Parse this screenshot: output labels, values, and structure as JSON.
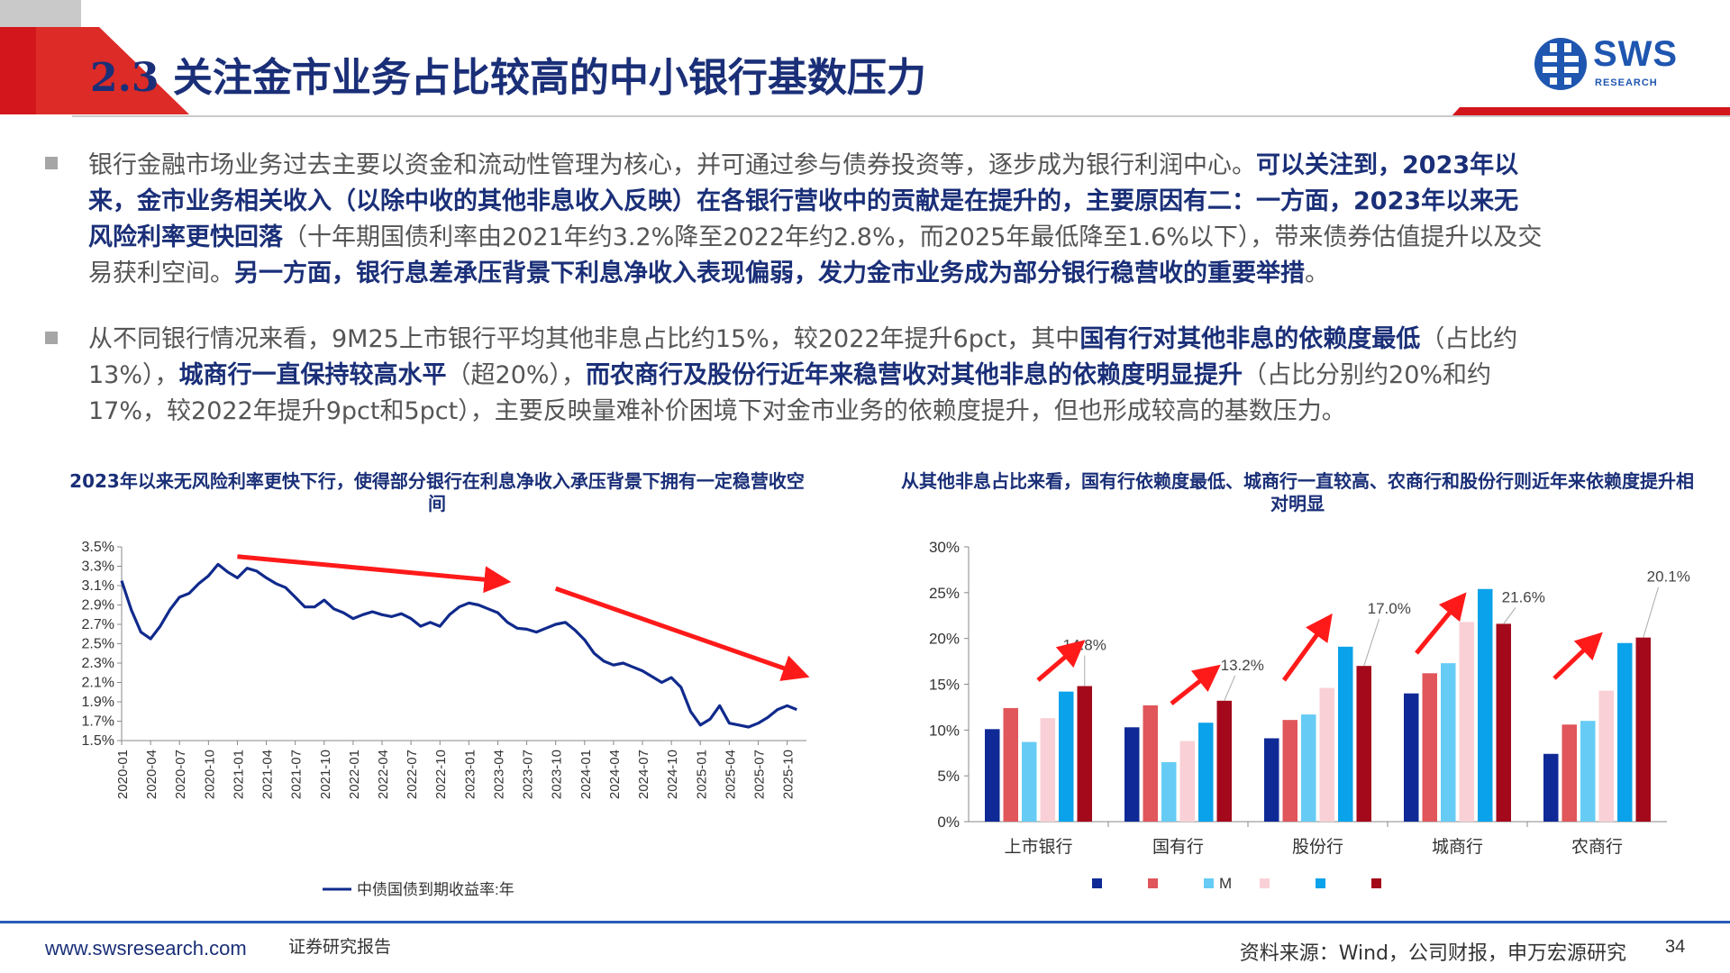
{
  "header": {
    "title": "2.3 关注金市业务占比较高的中小银行基数压力",
    "logo_text": "SWS",
    "logo_sub": "RESEARCH"
  },
  "paragraphs": [
    {
      "lines": [
        [
          {
            "t": "银行金融市场业务过去主要以资金和流动性管理为核心，并可通过参与债券投资等，逐步成为银行利润中心。",
            "b": false
          },
          {
            "t": "可以关注到，2023年以",
            "b": true
          }
        ],
        [
          {
            "t": "来，金市业务相关收入（以除中收的其他非息收入反映）在各银行营收中的贡献是在提升的，主要原因有二：一方面，2023年以来无",
            "b": true
          }
        ],
        [
          {
            "t": "风险利率更快回落",
            "b": true
          },
          {
            "t": "（十年期国债利率由2021年约3.2%降至2022年约2.8%，而2025年最低降至1.6%以下），带来债券估值提升以及交",
            "b": false
          }
        ],
        [
          {
            "t": "易获利空间。",
            "b": false
          },
          {
            "t": "另一方面，银行息差承压背景下利息净收入表现偏弱，发力金市业务成为部分银行稳营收的重要举措",
            "b": true
          },
          {
            "t": "。",
            "b": false
          }
        ]
      ]
    },
    {
      "lines": [
        [
          {
            "t": "从不同银行情况来看，9M25上市银行平均其他非息占比约15%，较2022年提升6pct，其中",
            "b": false
          },
          {
            "t": "国有行对其他非息的依赖度最低",
            "b": true
          },
          {
            "t": "（占比约",
            "b": false
          }
        ],
        [
          {
            "t": "13%），",
            "b": false
          },
          {
            "t": "城商行一直保持较高水平",
            "b": true
          },
          {
            "t": "（超20%），",
            "b": false
          },
          {
            "t": "而农商行及股份行近年来稳营收对其他非息的依赖度明显提升",
            "b": true
          },
          {
            "t": "（占比分别约20%和约",
            "b": false
          }
        ],
        [
          {
            "t": "17%，较2022年提升9pct和5pct），主要反映量难补价困境下对金市业务的依赖度提升，但也形成较高的基数压力。",
            "b": false
          }
        ]
      ]
    }
  ],
  "chart_left_title": "2023年以来无风险利率更快下行，使得部分银行在利息净收入承压背景下拥有一定稳营收空间",
  "chart_right_title": "从其他非息占比来看，国有行依赖度最低、城商行一直较高、农商行和股份行则近年来依赖度提升相对明显",
  "footer": {
    "url": "www.swsresearch.com",
    "report": "证券研究报告",
    "source": "资料来源：Wind，公司财报，申万宏源研究",
    "page": "34"
  },
  "colors": {
    "brand": "#1a2f78",
    "accent_red": "#d9221c",
    "arrow": "#ff1a1a",
    "line": "#102a8c"
  },
  "chart_data": [
    {
      "type": "line",
      "title": "2023年以来无风险利率更快下行，使得部分银行在利息净收入承压背景下拥有一定稳营收空间",
      "yticks": [
        "3.5%",
        "3.3%",
        "3.1%",
        "2.9%",
        "2.7%",
        "2.5%",
        "2.3%",
        "2.1%",
        "1.9%",
        "1.7%",
        "1.5%"
      ],
      "ylim": [
        1.5,
        3.5
      ],
      "xticks": [
        "2020-01",
        "2020-04",
        "2020-07",
        "2020-10",
        "2021-01",
        "2021-04",
        "2021-07",
        "2021-10",
        "2022-01",
        "2022-04",
        "2022-07",
        "2022-10",
        "2023-01",
        "2023-04",
        "2023-07",
        "2023-10",
        "2024-01",
        "2024-04",
        "2024-07",
        "2024-10",
        "2025-01",
        "2025-04",
        "2025-07",
        "2025-10"
      ],
      "xlim": [
        "2020-01",
        "2025-12"
      ],
      "series": [
        {
          "name": "中债国债到期收益率:年",
          "x": [
            "2020-01",
            "2020-02",
            "2020-03",
            "2020-04",
            "2020-05",
            "2020-06",
            "2020-07",
            "2020-08",
            "2020-09",
            "2020-10",
            "2020-11",
            "2020-12",
            "2021-01",
            "2021-02",
            "2021-03",
            "2021-04",
            "2021-05",
            "2021-06",
            "2021-07",
            "2021-08",
            "2021-09",
            "2021-10",
            "2021-11",
            "2021-12",
            "2022-01",
            "2022-02",
            "2022-03",
            "2022-04",
            "2022-05",
            "2022-06",
            "2022-07",
            "2022-08",
            "2022-09",
            "2022-10",
            "2022-11",
            "2022-12",
            "2023-01",
            "2023-02",
            "2023-03",
            "2023-04",
            "2023-05",
            "2023-06",
            "2023-07",
            "2023-08",
            "2023-09",
            "2023-10",
            "2023-11",
            "2023-12",
            "2024-01",
            "2024-02",
            "2024-03",
            "2024-04",
            "2024-05",
            "2024-06",
            "2024-07",
            "2024-08",
            "2024-09",
            "2024-10",
            "2024-11",
            "2024-12",
            "2025-01",
            "2025-02",
            "2025-03",
            "2025-04",
            "2025-05",
            "2025-06",
            "2025-07",
            "2025-08",
            "2025-09",
            "2025-10",
            "2025-11"
          ],
          "values": [
            3.15,
            2.85,
            2.62,
            2.55,
            2.68,
            2.85,
            2.98,
            3.02,
            3.12,
            3.2,
            3.32,
            3.24,
            3.18,
            3.28,
            3.25,
            3.18,
            3.12,
            3.08,
            2.98,
            2.88,
            2.88,
            2.95,
            2.86,
            2.82,
            2.76,
            2.8,
            2.83,
            2.8,
            2.78,
            2.81,
            2.76,
            2.68,
            2.72,
            2.68,
            2.8,
            2.88,
            2.92,
            2.9,
            2.86,
            2.82,
            2.72,
            2.66,
            2.65,
            2.62,
            2.66,
            2.7,
            2.72,
            2.64,
            2.54,
            2.4,
            2.32,
            2.28,
            2.3,
            2.26,
            2.22,
            2.16,
            2.1,
            2.15,
            2.05,
            1.8,
            1.66,
            1.72,
            1.86,
            1.68,
            1.66,
            1.64,
            1.68,
            1.74,
            1.82,
            1.86,
            1.82
          ]
        }
      ],
      "trend_arrows": 3
    },
    {
      "type": "bar",
      "title": "从其他非息占比来看，国有行依赖度最低、城商行一直较高、农商行和股份行则近年来依赖度提升相对明显",
      "categories": [
        "上市银行",
        "国有行",
        "股份行",
        "城商行",
        "农商行"
      ],
      "yticks": [
        "30%",
        "25%",
        "20%",
        "15%",
        "10%",
        "5%",
        "0%"
      ],
      "ylim": [
        0,
        30
      ],
      "series": [
        {
          "name": "",
          "color": "#0f2a96",
          "values": [
            10.1,
            10.3,
            9.1,
            14.0,
            7.4
          ]
        },
        {
          "name": "",
          "color": "#e0565b",
          "values": [
            12.4,
            12.7,
            11.1,
            16.2,
            10.6
          ]
        },
        {
          "name": "M",
          "color": "#66ccf5",
          "values": [
            8.7,
            6.5,
            11.7,
            17.3,
            11.0
          ]
        },
        {
          "name": "",
          "color": "#f9d0d6",
          "values": [
            11.3,
            8.8,
            14.6,
            21.8,
            14.3
          ]
        },
        {
          "name": "",
          "color": "#0aa2ea",
          "values": [
            14.2,
            10.8,
            19.1,
            25.4,
            19.5
          ]
        },
        {
          "name": "",
          "color": "#a3091b",
          "values": [
            14.8,
            13.2,
            17.0,
            21.6,
            20.1
          ]
        }
      ],
      "data_labels": [
        "14.8%",
        "13.2%",
        "17.0%",
        "21.6%",
        "20.1%"
      ]
    }
  ]
}
